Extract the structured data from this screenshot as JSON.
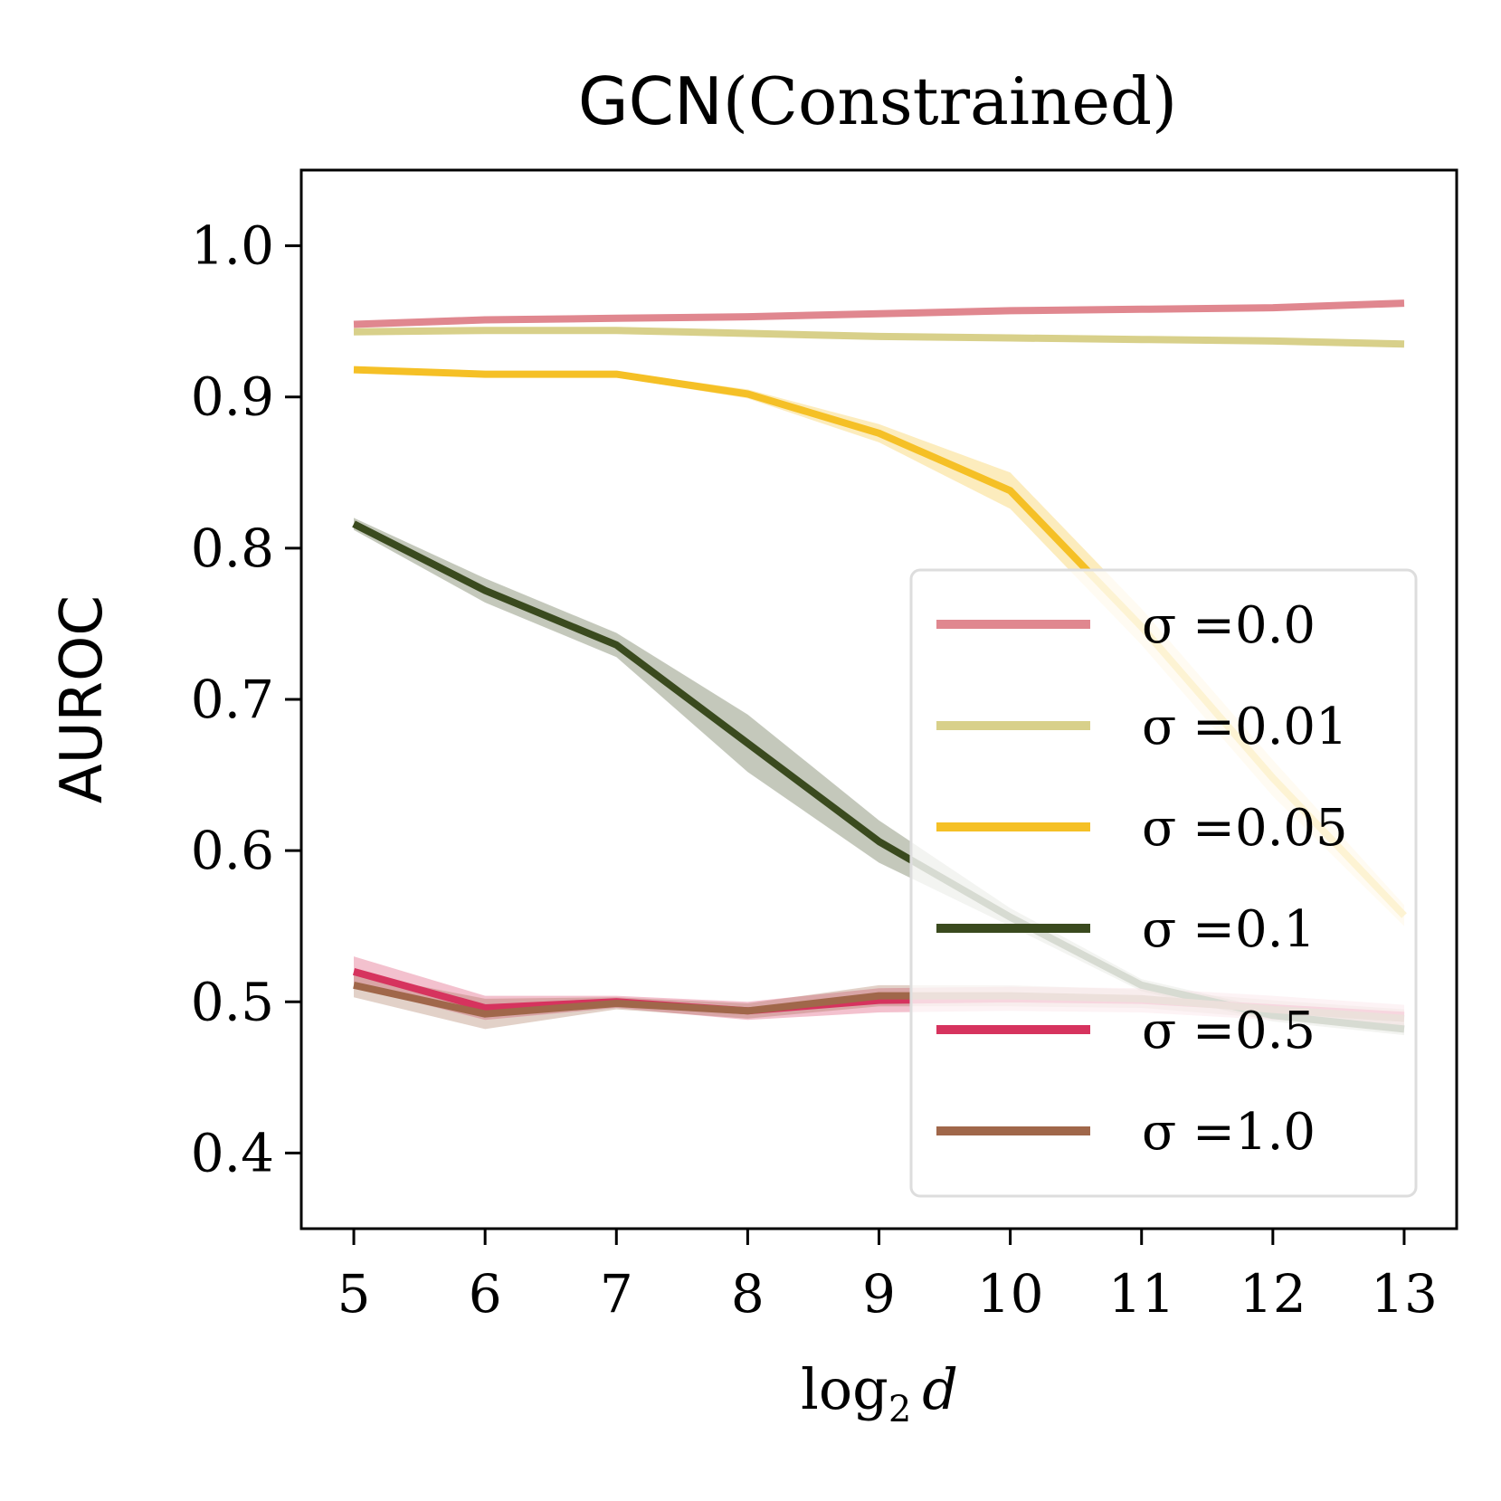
{
  "chart_data": {
    "type": "line",
    "title_prefix": "GCN",
    "title_suffix": "(Constrained)",
    "xlabel": "log",
    "xlabel_sub": "2",
    "xlabel_var": "d",
    "ylabel": "AUROC",
    "x": [
      5,
      6,
      7,
      8,
      9,
      10,
      11,
      12,
      13
    ],
    "xlim": [
      4.6,
      13.4
    ],
    "ylim": [
      0.35,
      1.05
    ],
    "yticks": [
      0.4,
      0.5,
      0.6,
      0.7,
      0.8,
      0.9,
      1.0
    ],
    "ytick_labels": [
      "0.4",
      "0.5",
      "0.6",
      "0.7",
      "0.8",
      "0.9",
      "1.0"
    ],
    "xtick_labels": [
      "5",
      "6",
      "7",
      "8",
      "9",
      "10",
      "11",
      "12",
      "13"
    ],
    "legend_position": "lower right",
    "grid": false,
    "series": [
      {
        "name": "σ =0.0",
        "color": "#e0878f",
        "values": [
          0.948,
          0.951,
          0.952,
          0.953,
          0.955,
          0.957,
          0.958,
          0.959,
          0.962
        ],
        "lower": [
          0.947,
          0.95,
          0.951,
          0.952,
          0.954,
          0.956,
          0.957,
          0.958,
          0.961
        ],
        "upper": [
          0.949,
          0.952,
          0.953,
          0.954,
          0.956,
          0.958,
          0.959,
          0.96,
          0.963
        ]
      },
      {
        "name": "σ =0.01",
        "color": "#d8d08a",
        "values": [
          0.943,
          0.944,
          0.944,
          0.942,
          0.94,
          0.939,
          0.938,
          0.937,
          0.935
        ],
        "lower": [
          0.942,
          0.943,
          0.943,
          0.941,
          0.939,
          0.938,
          0.937,
          0.936,
          0.934
        ],
        "upper": [
          0.944,
          0.945,
          0.945,
          0.943,
          0.941,
          0.94,
          0.939,
          0.938,
          0.936
        ]
      },
      {
        "name": "σ =0.05",
        "color": "#f5c026",
        "values": [
          0.918,
          0.915,
          0.915,
          0.902,
          0.876,
          0.838,
          0.748,
          0.648,
          0.557
        ],
        "lower": [
          0.916,
          0.913,
          0.913,
          0.899,
          0.87,
          0.826,
          0.736,
          0.636,
          0.55
        ],
        "upper": [
          0.92,
          0.917,
          0.917,
          0.905,
          0.882,
          0.85,
          0.76,
          0.66,
          0.564
        ]
      },
      {
        "name": "σ =0.1",
        "color": "#3a4a1e",
        "values": [
          0.816,
          0.772,
          0.736,
          0.671,
          0.606,
          0.556,
          0.511,
          0.491,
          0.482
        ],
        "lower": [
          0.812,
          0.764,
          0.728,
          0.652,
          0.592,
          0.55,
          0.507,
          0.487,
          0.478
        ],
        "upper": [
          0.82,
          0.78,
          0.744,
          0.69,
          0.62,
          0.562,
          0.515,
          0.495,
          0.486
        ]
      },
      {
        "name": "σ =0.5",
        "color": "#d6335e",
        "values": [
          0.52,
          0.496,
          0.5,
          0.494,
          0.501,
          0.502,
          0.501,
          0.496,
          0.491
        ],
        "lower": [
          0.51,
          0.488,
          0.496,
          0.488,
          0.493,
          0.494,
          0.493,
          0.488,
          0.484
        ],
        "upper": [
          0.53,
          0.504,
          0.504,
          0.5,
          0.509,
          0.51,
          0.509,
          0.504,
          0.498
        ]
      },
      {
        "name": "σ =1.0",
        "color": "#a0674a",
        "values": [
          0.511,
          0.492,
          0.499,
          0.494,
          0.504,
          0.504,
          0.502,
          0.495,
          0.489
        ],
        "lower": [
          0.503,
          0.482,
          0.495,
          0.489,
          0.497,
          0.497,
          0.496,
          0.489,
          0.483
        ],
        "upper": [
          0.519,
          0.502,
          0.503,
          0.499,
          0.511,
          0.511,
          0.508,
          0.501,
          0.495
        ]
      }
    ]
  }
}
